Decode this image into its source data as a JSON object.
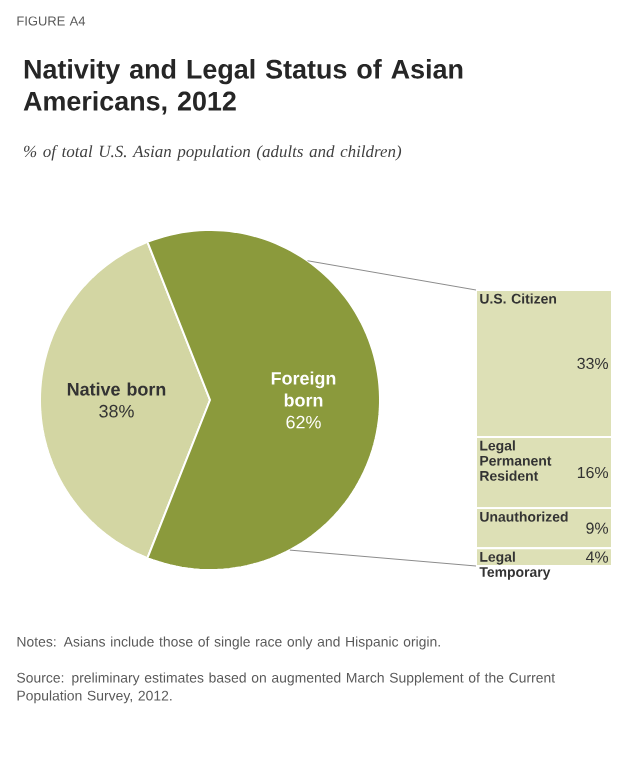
{
  "chart_data": [
    {
      "type": "pie",
      "title": "Nativity and Legal Status of Asian Americans, 2012",
      "subtitle": "% of total U.S. Asian population (adults and children)",
      "categories": [
        "Native born",
        "Foreign born"
      ],
      "values": [
        38,
        62
      ],
      "value_labels": [
        "38%",
        "62%"
      ],
      "colors": [
        "#d3d6a3",
        "#8b9a3c"
      ],
      "annotations": [
        "FIGURE A4",
        "Notes: Asians include those of single race only and Hispanic origin.",
        "Source: preliminary estimates based on augmented March Supplement of the Current Population Survey, 2012."
      ]
    },
    {
      "type": "bar",
      "stacked": true,
      "categories": [
        null
      ],
      "series": [
        {
          "name": "Legal Temporary",
          "color": "#dde0b6",
          "values": [
            4
          ],
          "value_labels": [
            "4%"
          ]
        },
        {
          "name": "Unauthorized",
          "color": "#dde0b6",
          "values": [
            9
          ],
          "value_labels": [
            "9%"
          ]
        },
        {
          "name": "Legal Permanent Resident",
          "color": "#dde0b6",
          "values": [
            16
          ],
          "value_labels": [
            "16%"
          ]
        },
        {
          "name": "U.S. Citizen",
          "color": "#dde0b6",
          "values": [
            33
          ],
          "value_labels": [
            "33%"
          ]
        }
      ]
    }
  ]
}
